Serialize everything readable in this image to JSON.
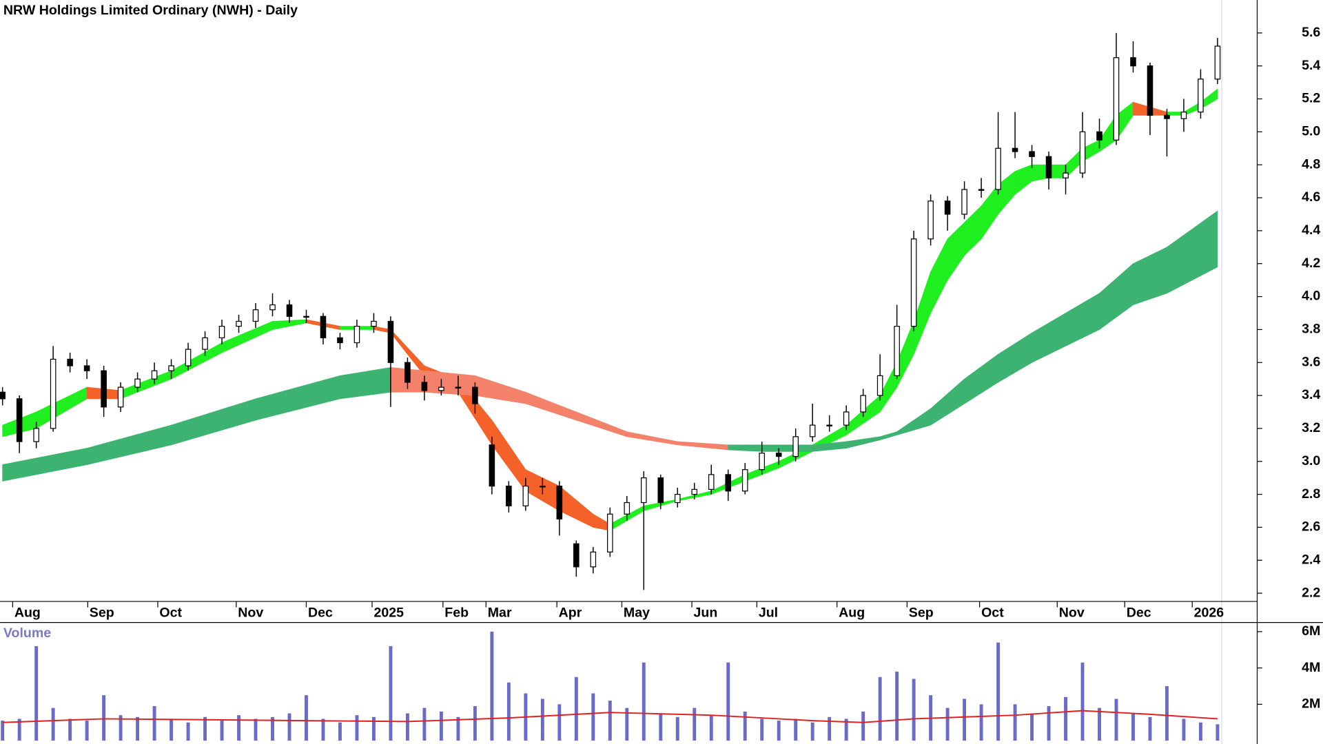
{
  "chart_data": {
    "type": "candlestick",
    "title": "NRW Holdings Limited Ordinary (NWH) - Daily",
    "x": [
      0,
      5,
      10,
      15,
      20,
      25,
      30,
      35,
      40,
      45,
      50,
      55,
      60,
      65,
      70,
      75,
      80,
      85,
      90,
      95,
      100,
      105,
      110,
      115,
      120,
      125,
      130,
      135,
      140,
      145,
      150,
      155,
      160,
      165,
      170,
      175,
      180,
      185,
      190,
      195,
      200,
      205,
      210,
      215,
      220,
      225,
      230,
      235,
      240,
      245,
      250,
      255,
      260,
      265,
      270,
      275,
      280,
      285,
      290,
      295,
      300,
      305,
      310,
      315,
      320,
      325,
      330,
      335,
      340,
      345,
      350,
      355,
      360
    ],
    "open": [
      3.42,
      3.38,
      3.12,
      3.2,
      3.62,
      3.58,
      3.55,
      3.33,
      3.45,
      3.5,
      3.55,
      3.58,
      3.68,
      3.75,
      3.82,
      3.85,
      3.92,
      3.95,
      3.88,
      3.88,
      3.75,
      3.72,
      3.82,
      3.85,
      3.6,
      3.48,
      3.43,
      3.45,
      3.45,
      3.1,
      2.85,
      2.73,
      2.85,
      2.85,
      2.5,
      2.36,
      2.45,
      2.68,
      2.75,
      2.9,
      2.75,
      2.8,
      2.83,
      2.92,
      2.82,
      2.95,
      3.05,
      3.03,
      3.15,
      3.22,
      3.22,
      3.3,
      3.4,
      3.52,
      3.82,
      4.35,
      4.58,
      4.5,
      4.65,
      4.65,
      4.9,
      4.88,
      4.85,
      4.72,
      4.75,
      5.0,
      4.95,
      5.45,
      5.4,
      5.1,
      5.08,
      5.12,
      5.32
    ],
    "high": [
      3.45,
      3.4,
      3.24,
      3.7,
      3.66,
      3.62,
      3.58,
      3.48,
      3.54,
      3.6,
      3.62,
      3.72,
      3.79,
      3.86,
      3.89,
      3.96,
      4.02,
      3.98,
      3.92,
      3.9,
      3.78,
      3.86,
      3.9,
      3.88,
      3.63,
      3.52,
      3.5,
      3.52,
      3.48,
      3.15,
      2.88,
      2.9,
      2.9,
      2.88,
      2.52,
      2.48,
      2.72,
      2.79,
      2.94,
      2.92,
      2.84,
      2.87,
      2.98,
      2.95,
      2.99,
      3.12,
      3.08,
      3.2,
      3.35,
      3.28,
      3.34,
      3.44,
      3.65,
      3.95,
      4.4,
      4.62,
      4.61,
      4.7,
      4.72,
      5.12,
      5.12,
      4.92,
      4.88,
      4.8,
      5.12,
      5.08,
      5.6,
      5.55,
      5.42,
      5.14,
      5.2,
      5.38,
      5.57
    ],
    "low": [
      3.34,
      3.05,
      3.08,
      3.18,
      3.54,
      3.5,
      3.27,
      3.3,
      3.42,
      3.47,
      3.5,
      3.55,
      3.64,
      3.71,
      3.78,
      3.81,
      3.88,
      3.84,
      3.84,
      3.71,
      3.68,
      3.69,
      3.78,
      3.33,
      3.44,
      3.37,
      3.4,
      3.4,
      3.29,
      2.8,
      2.69,
      2.7,
      2.8,
      2.55,
      2.3,
      2.32,
      2.42,
      2.64,
      2.22,
      2.71,
      2.72,
      2.77,
      2.8,
      2.76,
      2.8,
      2.92,
      2.98,
      3.0,
      3.12,
      3.18,
      3.19,
      3.27,
      3.37,
      3.5,
      3.79,
      4.31,
      4.4,
      4.47,
      4.6,
      4.62,
      4.84,
      4.78,
      4.65,
      4.62,
      4.72,
      4.9,
      4.92,
      5.36,
      4.98,
      4.85,
      5.0,
      5.08,
      5.29
    ],
    "close": [
      3.38,
      3.12,
      3.2,
      3.62,
      3.58,
      3.55,
      3.33,
      3.45,
      3.5,
      3.55,
      3.58,
      3.68,
      3.75,
      3.82,
      3.85,
      3.92,
      3.95,
      3.88,
      3.88,
      3.75,
      3.72,
      3.82,
      3.85,
      3.6,
      3.48,
      3.43,
      3.45,
      3.45,
      3.35,
      2.85,
      2.73,
      2.85,
      2.85,
      2.65,
      2.36,
      2.45,
      2.68,
      2.75,
      2.9,
      2.75,
      2.8,
      2.83,
      2.92,
      2.82,
      2.95,
      3.05,
      3.03,
      3.15,
      3.22,
      3.22,
      3.3,
      3.4,
      3.52,
      3.82,
      4.35,
      4.58,
      4.5,
      4.65,
      4.65,
      4.9,
      4.88,
      4.85,
      4.72,
      4.75,
      5.0,
      4.95,
      5.45,
      5.4,
      5.1,
      5.08,
      5.12,
      5.32,
      5.52
    ],
    "xlim": [
      -0.75,
      371.75
    ],
    "xticks": [
      {
        "value": 3,
        "label": "Aug"
      },
      {
        "value": 25.25,
        "label": "Sep"
      },
      {
        "value": 46,
        "label": "Oct"
      },
      {
        "value": 69.25,
        "label": "Nov"
      },
      {
        "value": 90,
        "label": "Dec"
      },
      {
        "value": 109.5,
        "label": "2025"
      },
      {
        "value": 130.5,
        "label": "Feb"
      },
      {
        "value": 143.25,
        "label": "Mar"
      },
      {
        "value": 164.25,
        "label": "Apr"
      },
      {
        "value": 183.5,
        "label": "May"
      },
      {
        "value": 204.25,
        "label": "Jun"
      },
      {
        "value": 223.5,
        "label": "Jul"
      },
      {
        "value": 247.25,
        "label": "Aug"
      },
      {
        "value": 268,
        "label": "Sep"
      },
      {
        "value": 289.5,
        "label": "Oct"
      },
      {
        "value": 312.5,
        "label": "Nov"
      },
      {
        "value": 332.5,
        "label": "Dec"
      },
      {
        "value": 352.5,
        "label": "2026"
      }
    ],
    "ylim": [
      2.15,
      5.8
    ],
    "yticks": [
      2.2,
      2.4,
      2.6,
      2.8,
      {
        "value": 3,
        "label": "3.0"
      },
      3.2,
      3.4,
      3.6,
      3.8,
      {
        "value": 4,
        "label": "4.0"
      },
      4.2,
      4.4,
      4.6,
      4.8,
      {
        "value": 5,
        "label": "5.0"
      },
      5.2,
      5.4,
      5.6
    ],
    "ribbons": [
      {
        "up_color": "#1fee1f",
        "down_color": "#f4622a",
        "x": [
          0,
          10,
          25,
          35,
          50,
          65,
          80,
          90,
          100,
          110,
          115,
          125,
          135,
          145,
          155,
          165,
          175,
          180,
          190,
          200,
          210,
          220,
          230,
          240,
          250,
          260,
          265,
          270,
          275,
          280,
          285,
          290,
          295,
          300,
          305,
          310,
          315,
          320,
          325,
          330,
          335,
          340,
          345,
          350,
          355,
          360
        ],
        "upper": [
          3.22,
          3.3,
          3.45,
          3.43,
          3.55,
          3.72,
          3.85,
          3.86,
          3.82,
          3.82,
          3.8,
          3.58,
          3.5,
          3.25,
          2.95,
          2.85,
          2.68,
          2.62,
          2.73,
          2.77,
          2.82,
          2.92,
          3.0,
          3.1,
          3.22,
          3.4,
          3.6,
          3.85,
          4.15,
          4.35,
          4.45,
          4.55,
          4.68,
          4.76,
          4.8,
          4.8,
          4.8,
          4.9,
          4.95,
          5.1,
          5.18,
          5.15,
          5.12,
          5.12,
          5.18,
          5.26
        ],
        "lower": [
          3.15,
          3.2,
          3.38,
          3.38,
          3.5,
          3.66,
          3.8,
          3.84,
          3.8,
          3.8,
          3.78,
          3.52,
          3.42,
          3.1,
          2.82,
          2.7,
          2.6,
          2.58,
          2.7,
          2.76,
          2.8,
          2.88,
          2.96,
          3.06,
          3.16,
          3.3,
          3.45,
          3.65,
          3.9,
          4.1,
          4.25,
          4.35,
          4.5,
          4.62,
          4.7,
          4.72,
          4.72,
          4.82,
          4.88,
          4.95,
          5.1,
          5.1,
          5.1,
          5.1,
          5.14,
          5.2
        ]
      },
      {
        "up_color": "#3cb371",
        "down_color": "#f4826a",
        "x": [
          0,
          25,
          50,
          75,
          100,
          115,
          125,
          140,
          155,
          170,
          185,
          200,
          215,
          225,
          240,
          250,
          260,
          265,
          275,
          285,
          295,
          305,
          315,
          325,
          335,
          345,
          360
        ],
        "upper": [
          2.98,
          3.08,
          3.22,
          3.38,
          3.52,
          3.57,
          3.55,
          3.52,
          3.42,
          3.3,
          3.18,
          3.12,
          3.1,
          3.1,
          3.1,
          3.12,
          3.15,
          3.18,
          3.32,
          3.5,
          3.65,
          3.78,
          3.9,
          4.02,
          4.2,
          4.3,
          4.52
        ],
        "lower": [
          2.88,
          2.98,
          3.1,
          3.25,
          3.38,
          3.42,
          3.42,
          3.4,
          3.35,
          3.25,
          3.15,
          3.1,
          3.07,
          3.06,
          3.06,
          3.08,
          3.13,
          3.16,
          3.22,
          3.35,
          3.48,
          3.6,
          3.7,
          3.8,
          3.95,
          4.02,
          4.18
        ]
      }
    ],
    "volume": {
      "label": "Volume",
      "color": "#6a6ac8",
      "values": [
        1100000,
        1200000,
        5200000,
        1800000,
        1200000,
        1100000,
        2500000,
        1400000,
        1300000,
        1900000,
        1200000,
        1000000,
        1300000,
        1100000,
        1400000,
        1200000,
        1300000,
        1500000,
        2500000,
        1200000,
        1000000,
        1400000,
        1300000,
        5200000,
        1500000,
        1800000,
        1600000,
        1300000,
        1900000,
        6000000,
        3200000,
        2600000,
        2300000,
        2000000,
        3500000,
        2600000,
        2200000,
        1800000,
        4300000,
        1500000,
        1300000,
        1800000,
        1400000,
        4300000,
        1600000,
        1200000,
        1100000,
        1200000,
        1000000,
        1300000,
        1200000,
        1600000,
        3500000,
        3800000,
        3400000,
        2500000,
        1800000,
        2300000,
        2000000,
        5400000,
        2000000,
        1500000,
        1900000,
        2400000,
        4300000,
        1800000,
        2300000,
        1500000,
        1300000,
        3000000,
        1200000,
        1000000,
        900000
      ],
      "ylim": [
        0,
        6500000
      ],
      "yticks": [
        {
          "value": 2000000,
          "label": "2M"
        },
        {
          "value": 4000000,
          "label": "4M"
        },
        {
          "value": 6000000,
          "label": "6M"
        }
      ],
      "ma": {
        "color": "#e02020",
        "x": [
          0,
          30,
          60,
          90,
          120,
          150,
          180,
          210,
          240,
          255,
          270,
          300,
          320,
          340,
          360
        ],
        "values": [
          1000000,
          1200000,
          1150000,
          1100000,
          1050000,
          1250000,
          1550000,
          1400000,
          1100000,
          1000000,
          1200000,
          1400000,
          1650000,
          1450000,
          1200000
        ]
      }
    }
  }
}
